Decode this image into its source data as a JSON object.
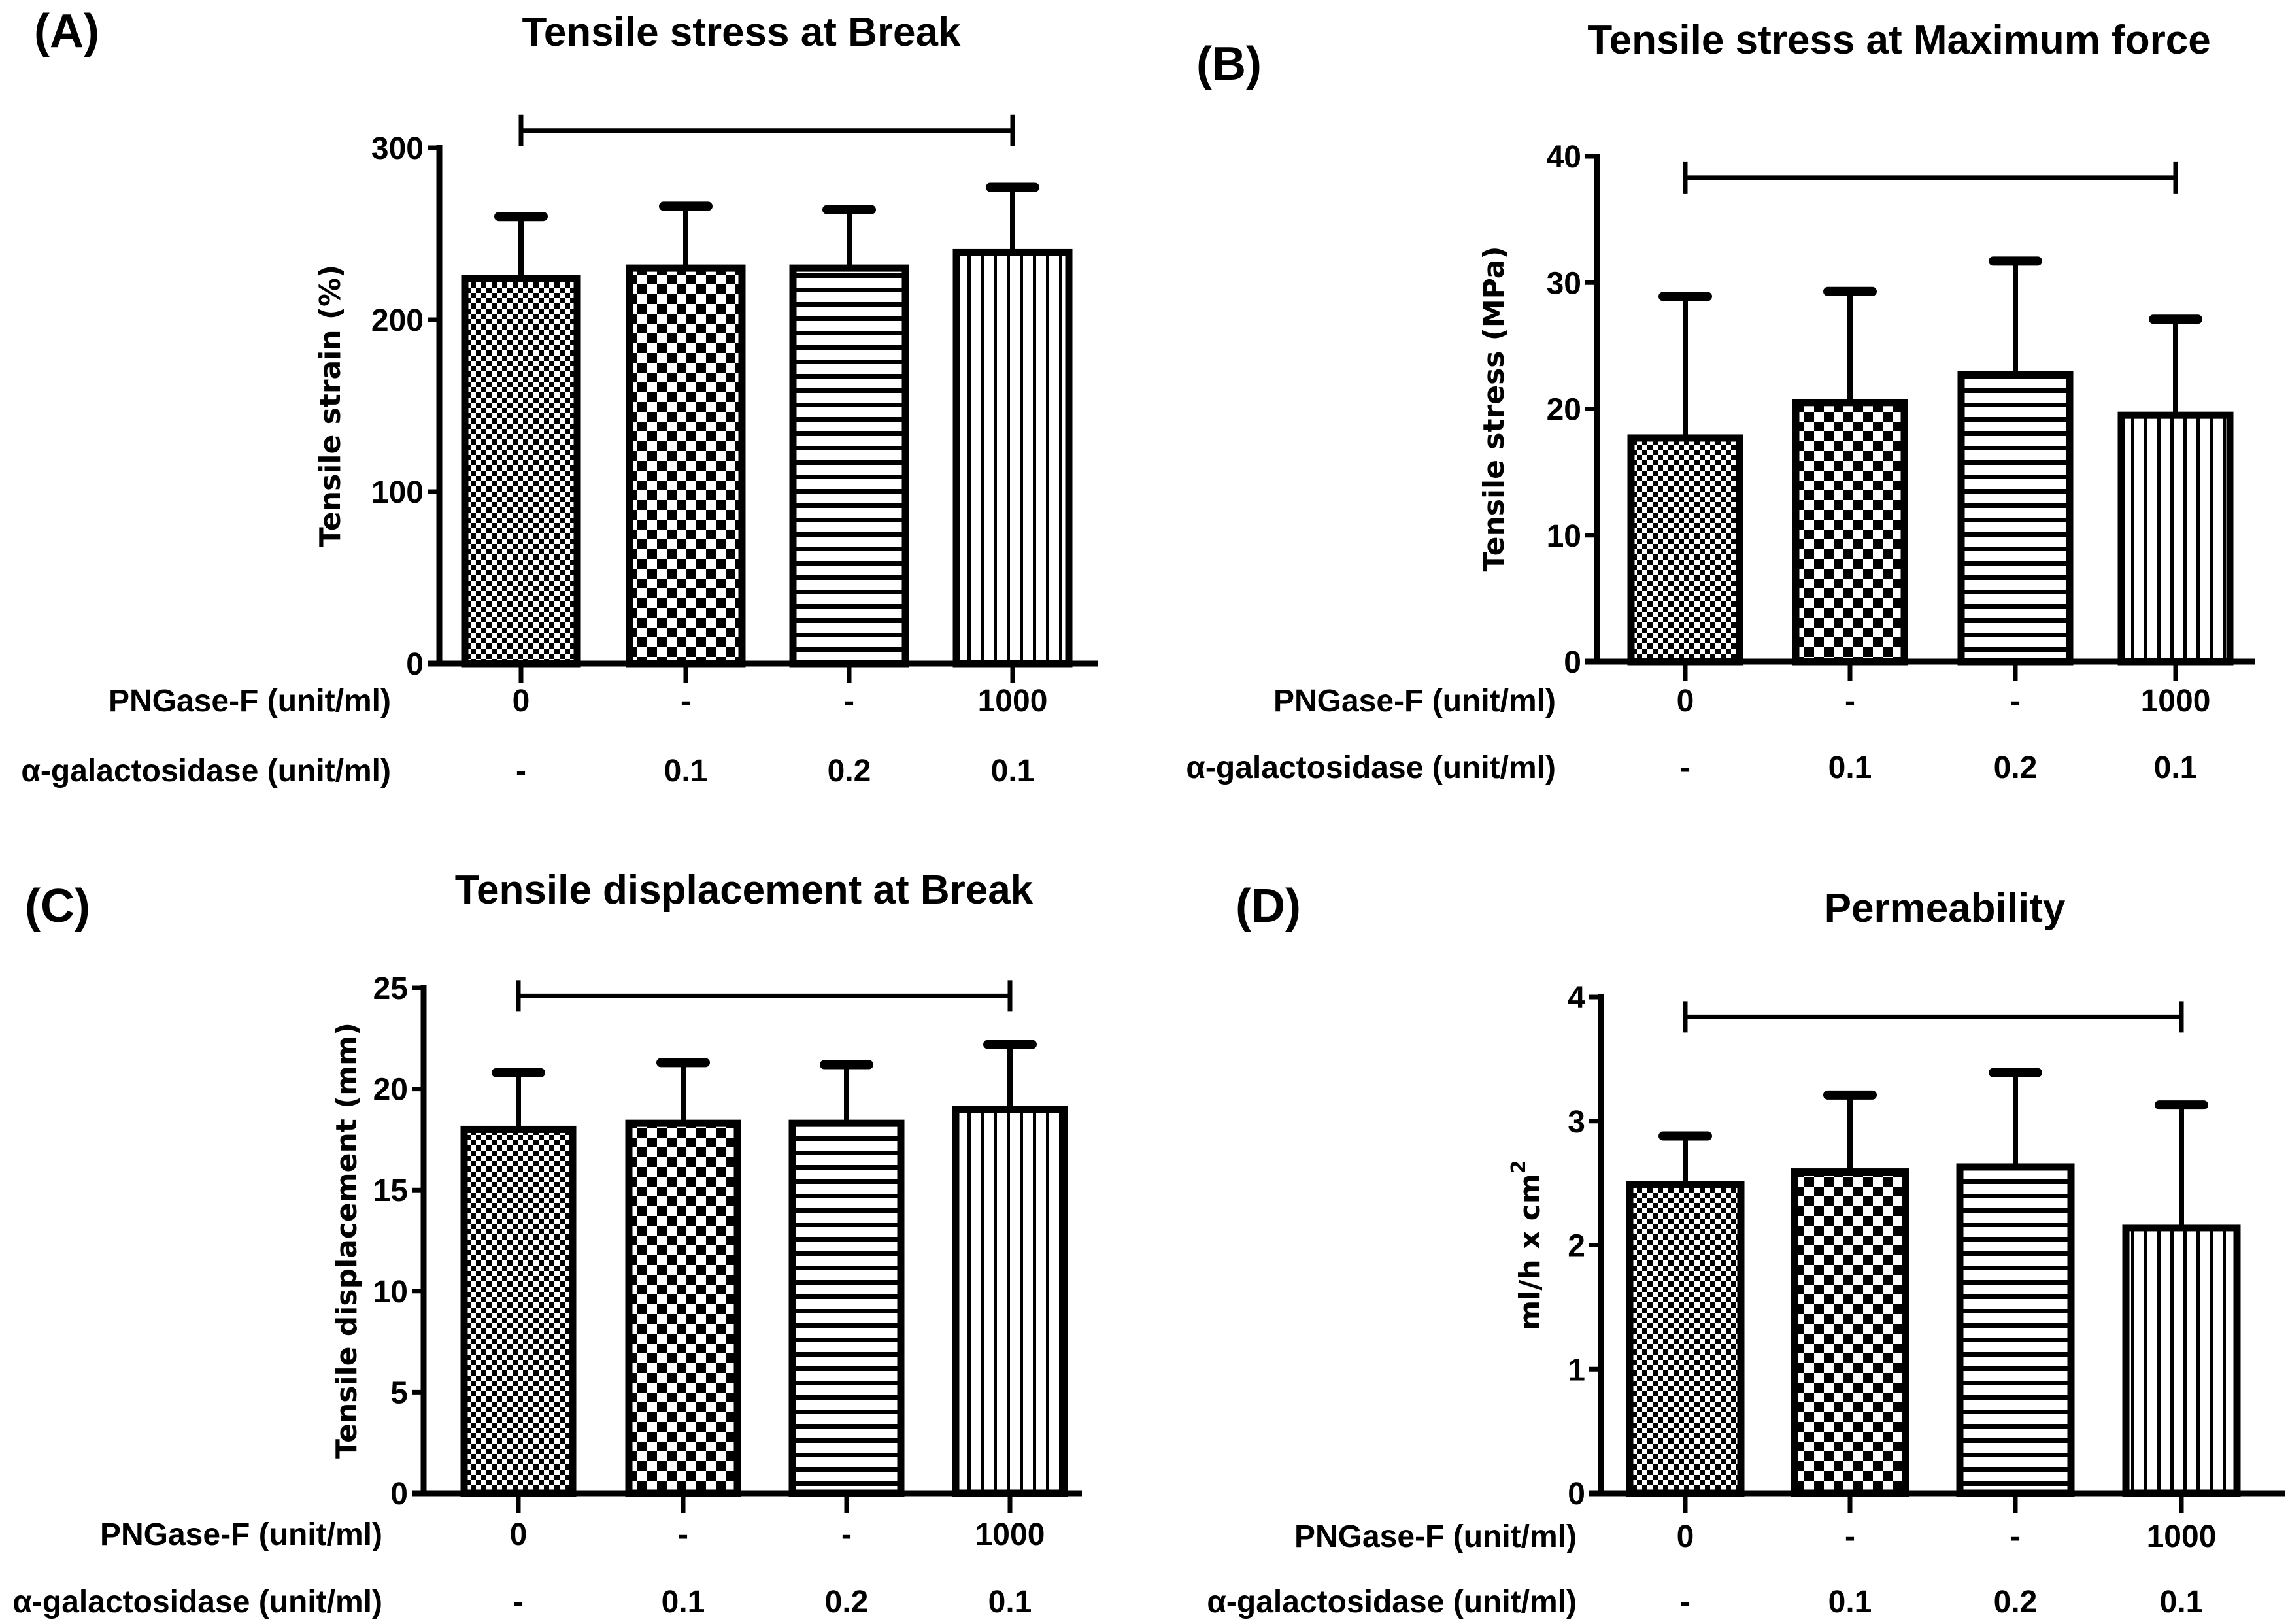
{
  "figure": {
    "row_labels": {
      "pngase": "PNGase-F (unit/ml)",
      "galactosidase": "α-galactosidase (unit/ml)"
    },
    "groups": [
      {
        "pngase": "0",
        "galactosidase": "-",
        "pattern": "fine-dots"
      },
      {
        "pngase": "-",
        "galactosidase": "0.1",
        "pattern": "checker"
      },
      {
        "pngase": "-",
        "galactosidase": "0.2",
        "pattern": "horizontal-lines"
      },
      {
        "pngase": "1000",
        "galactosidase": "0.1",
        "pattern": "vertical-lines"
      }
    ]
  },
  "chart_data": [
    {
      "panel": "(A)",
      "type": "bar",
      "title": "Tensile stress at Break",
      "ylabel": "Tensile strain (%)",
      "xlabel": "",
      "categories": [
        "0 / -",
        "- / 0.1",
        "- / 0.2",
        "1000 / 0.1"
      ],
      "values": [
        224,
        230,
        230,
        239
      ],
      "error_upper": [
        260,
        266,
        264,
        277
      ],
      "ylim": [
        0,
        300
      ],
      "yticks": [
        0,
        100,
        200,
        300
      ],
      "significance_bar": {
        "from": 0,
        "to": 3,
        "y": 310
      },
      "grid": false
    },
    {
      "panel": "(B)",
      "type": "bar",
      "title": "Tensile stress at Maximum force",
      "ylabel": "Tensile stress (MPa)",
      "xlabel": "",
      "categories": [
        "0 / -",
        "- / 0.1",
        "- / 0.2",
        "1000 / 0.1"
      ],
      "values": [
        17.7,
        20.5,
        22.7,
        19.5
      ],
      "error_upper": [
        28.9,
        29.3,
        31.7,
        27.1
      ],
      "ylim": [
        0,
        40
      ],
      "yticks": [
        0,
        10,
        20,
        30,
        40
      ],
      "significance_bar": {
        "from": 0,
        "to": 3,
        "y": 38.3
      },
      "grid": false
    },
    {
      "panel": "(C)",
      "type": "bar",
      "title": "Tensile displacement at Break",
      "ylabel": "Tensile displacement (mm)",
      "xlabel": "",
      "categories": [
        "0 / -",
        "- / 0.1",
        "- / 0.2",
        "1000 / 0.1"
      ],
      "values": [
        18.0,
        18.3,
        18.3,
        19.0
      ],
      "error_upper": [
        20.8,
        21.3,
        21.2,
        22.2
      ],
      "ylim": [
        0,
        25
      ],
      "yticks": [
        0,
        5,
        10,
        15,
        20,
        25
      ],
      "significance_bar": {
        "from": 0,
        "to": 3,
        "y": 24.6
      },
      "grid": false
    },
    {
      "panel": "(D)",
      "type": "bar",
      "title": "Permeability",
      "ylabel": "ml/h x cm",
      "ylabel_superscript": "2",
      "xlabel": "",
      "categories": [
        "0 / -",
        "- / 0.1",
        "- / 0.2",
        "1000 / 0.1"
      ],
      "values": [
        2.49,
        2.59,
        2.63,
        2.14
      ],
      "error_upper": [
        2.88,
        3.21,
        3.39,
        3.13
      ],
      "ylim": [
        0,
        4
      ],
      "yticks": [
        0,
        1,
        2,
        3,
        4
      ],
      "significance_bar": {
        "from": 0,
        "to": 3,
        "y": 3.84
      },
      "grid": false
    }
  ]
}
